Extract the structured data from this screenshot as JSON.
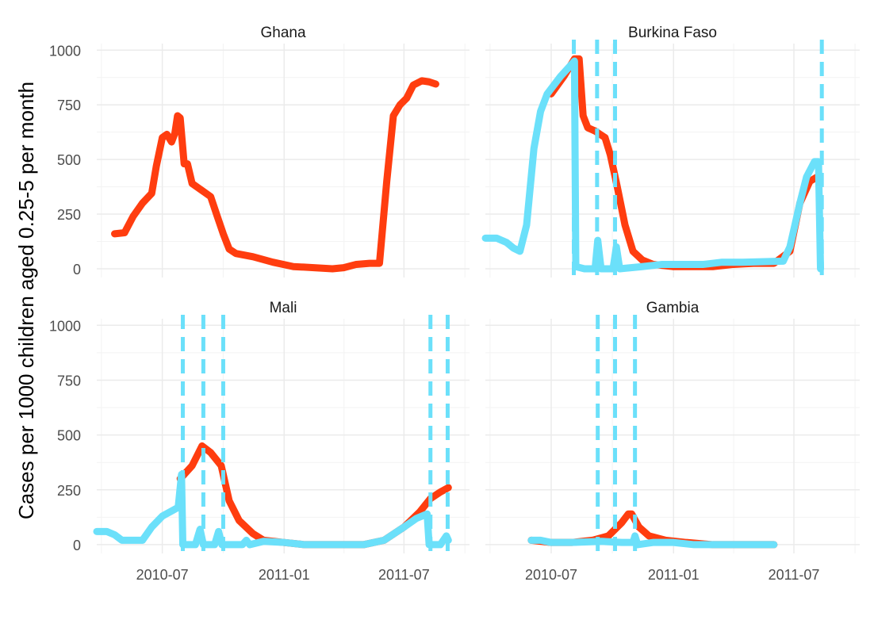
{
  "chart_data": {
    "type": "line",
    "ylabel": "Cases per 1000 children aged 0.25-5 per month",
    "xlabel": "",
    "y_ticks": [
      "0",
      "250",
      "500",
      "750",
      "1000"
    ],
    "y_tick_values": [
      0,
      250,
      500,
      750,
      1000
    ],
    "x_ticks": [
      "2010-07",
      "2011-01",
      "2011-07"
    ],
    "x_tick_values": [
      "2010-07-01",
      "2011-01-01",
      "2011-07-01"
    ],
    "xlim": [
      "2010-03-24",
      "2011-10-08"
    ],
    "ylim": [
      -40,
      1030
    ],
    "grid": true,
    "legend": "none",
    "colors": {
      "red_series": "#FF3D0F",
      "blue_series": "#6BE0FA",
      "grid": "#EBEBEB"
    },
    "panels": [
      {
        "title": "Ghana",
        "red": [
          [
            "2010-04-20",
            160
          ],
          [
            "2010-05-05",
            165
          ],
          [
            "2010-05-18",
            240
          ],
          [
            "2010-06-01",
            300
          ],
          [
            "2010-06-15",
            345
          ],
          [
            "2010-06-22",
            470
          ],
          [
            "2010-07-01",
            600
          ],
          [
            "2010-07-08",
            615
          ],
          [
            "2010-07-15",
            580
          ],
          [
            "2010-07-20",
            620
          ],
          [
            "2010-07-24",
            700
          ],
          [
            "2010-07-28",
            690
          ],
          [
            "2010-08-03",
            480
          ],
          [
            "2010-08-08",
            480
          ],
          [
            "2010-08-15",
            390
          ],
          [
            "2010-08-29",
            360
          ],
          [
            "2010-09-12",
            330
          ],
          [
            "2010-09-22",
            240
          ],
          [
            "2010-10-01",
            160
          ],
          [
            "2010-10-10",
            90
          ],
          [
            "2010-10-20",
            70
          ],
          [
            "2010-11-15",
            55
          ],
          [
            "2010-12-15",
            30
          ],
          [
            "2011-01-15",
            10
          ],
          [
            "2011-02-15",
            5
          ],
          [
            "2011-03-15",
            0
          ],
          [
            "2011-04-01",
            5
          ],
          [
            "2011-04-20",
            20
          ],
          [
            "2011-05-10",
            25
          ],
          [
            "2011-05-25",
            25
          ],
          [
            "2011-06-05",
            400
          ],
          [
            "2011-06-15",
            700
          ],
          [
            "2011-06-25",
            750
          ],
          [
            "2011-07-05",
            780
          ],
          [
            "2011-07-15",
            840
          ],
          [
            "2011-07-28",
            860
          ],
          [
            "2011-08-08",
            855
          ],
          [
            "2011-08-18",
            845
          ]
        ],
        "blue": [],
        "vlines": []
      },
      {
        "title": "Burkina Faso",
        "red": [
          [
            "2010-07-01",
            800
          ],
          [
            "2010-07-20",
            880
          ],
          [
            "2010-08-05",
            960
          ],
          [
            "2010-08-12",
            960
          ],
          [
            "2010-08-18",
            700
          ],
          [
            "2010-08-25",
            645
          ],
          [
            "2010-09-05",
            630
          ],
          [
            "2010-09-20",
            600
          ],
          [
            "2010-09-28",
            520
          ],
          [
            "2010-10-08",
            380
          ],
          [
            "2010-10-20",
            200
          ],
          [
            "2010-11-01",
            80
          ],
          [
            "2010-11-15",
            40
          ],
          [
            "2010-12-01",
            20
          ],
          [
            "2011-01-01",
            10
          ],
          [
            "2011-03-01",
            10
          ],
          [
            "2011-04-01",
            20
          ],
          [
            "2011-05-01",
            25
          ],
          [
            "2011-06-01",
            25
          ],
          [
            "2011-06-25",
            80
          ],
          [
            "2011-07-10",
            300
          ],
          [
            "2011-07-25",
            400
          ],
          [
            "2011-08-05",
            420
          ]
        ],
        "blue": [
          [
            "2010-03-24",
            140
          ],
          [
            "2010-04-10",
            140
          ],
          [
            "2010-04-25",
            120
          ],
          [
            "2010-05-05",
            95
          ],
          [
            "2010-05-15",
            80
          ],
          [
            "2010-05-25",
            200
          ],
          [
            "2010-06-05",
            550
          ],
          [
            "2010-06-15",
            720
          ],
          [
            "2010-06-25",
            800
          ],
          [
            "2010-07-15",
            880
          ],
          [
            "2010-08-05",
            950
          ],
          [
            "2010-08-07",
            10
          ],
          [
            "2010-08-20",
            0
          ],
          [
            "2010-09-05",
            0
          ],
          [
            "2010-09-09",
            130
          ],
          [
            "2010-09-14",
            0
          ],
          [
            "2010-10-02",
            0
          ],
          [
            "2010-10-07",
            100
          ],
          [
            "2010-10-12",
            0
          ],
          [
            "2010-11-15",
            10
          ],
          [
            "2010-12-15",
            20
          ],
          [
            "2011-02-15",
            20
          ],
          [
            "2011-03-15",
            30
          ],
          [
            "2011-04-15",
            30
          ],
          [
            "2011-06-15",
            35
          ],
          [
            "2011-06-25",
            100
          ],
          [
            "2011-07-10",
            300
          ],
          [
            "2011-07-20",
            420
          ],
          [
            "2011-08-01",
            490
          ],
          [
            "2011-08-07",
            490
          ],
          [
            "2011-08-10",
            0
          ]
        ],
        "vlines": [
          "2010-08-04",
          "2010-09-08",
          "2010-10-05",
          "2011-08-12"
        ]
      },
      {
        "title": "Mali",
        "red": [
          [
            "2010-07-28",
            300
          ],
          [
            "2010-08-15",
            360
          ],
          [
            "2010-08-30",
            450
          ],
          [
            "2010-09-12",
            420
          ],
          [
            "2010-09-28",
            360
          ],
          [
            "2010-10-10",
            200
          ],
          [
            "2010-10-25",
            110
          ],
          [
            "2010-11-15",
            50
          ],
          [
            "2010-12-01",
            20
          ],
          [
            "2011-01-01",
            10
          ],
          [
            "2011-02-01",
            0
          ],
          [
            "2011-05-01",
            0
          ],
          [
            "2011-06-01",
            20
          ],
          [
            "2011-07-01",
            80
          ],
          [
            "2011-07-25",
            150
          ],
          [
            "2011-08-10",
            210
          ],
          [
            "2011-08-25",
            240
          ],
          [
            "2011-09-06",
            260
          ]
        ],
        "blue": [
          [
            "2010-03-24",
            60
          ],
          [
            "2010-04-08",
            60
          ],
          [
            "2010-04-20",
            45
          ],
          [
            "2010-05-01",
            20
          ],
          [
            "2010-06-01",
            20
          ],
          [
            "2010-06-15",
            80
          ],
          [
            "2010-07-01",
            130
          ],
          [
            "2010-07-25",
            170
          ],
          [
            "2010-07-30",
            320
          ],
          [
            "2010-08-01",
            0
          ],
          [
            "2010-08-20",
            0
          ],
          [
            "2010-08-27",
            70
          ],
          [
            "2010-09-01",
            0
          ],
          [
            "2010-09-18",
            0
          ],
          [
            "2010-09-24",
            60
          ],
          [
            "2010-09-29",
            0
          ],
          [
            "2010-10-30",
            0
          ],
          [
            "2010-11-05",
            20
          ],
          [
            "2010-11-10",
            0
          ],
          [
            "2010-12-01",
            15
          ],
          [
            "2011-01-01",
            10
          ],
          [
            "2011-02-01",
            0
          ],
          [
            "2011-05-01",
            0
          ],
          [
            "2011-06-01",
            20
          ],
          [
            "2011-07-01",
            80
          ],
          [
            "2011-07-20",
            120
          ],
          [
            "2011-08-05",
            140
          ],
          [
            "2011-08-08",
            0
          ],
          [
            "2011-08-25",
            0
          ],
          [
            "2011-09-03",
            40
          ],
          [
            "2011-09-06",
            20
          ]
        ],
        "vlines": [
          "2010-08-01",
          "2010-09-01",
          "2010-10-01",
          "2011-08-10",
          "2011-09-05"
        ]
      },
      {
        "title": "Gambia",
        "red": [
          [
            "2010-06-01",
            20
          ],
          [
            "2010-07-01",
            10
          ],
          [
            "2010-08-01",
            10
          ],
          [
            "2010-09-01",
            20
          ],
          [
            "2010-09-25",
            40
          ],
          [
            "2010-10-15",
            100
          ],
          [
            "2010-10-25",
            140
          ],
          [
            "2010-10-30",
            140
          ],
          [
            "2010-11-10",
            80
          ],
          [
            "2010-11-25",
            40
          ],
          [
            "2010-12-20",
            20
          ],
          [
            "2011-01-20",
            10
          ],
          [
            "2011-03-01",
            0
          ],
          [
            "2011-06-01",
            0
          ]
        ],
        "blue": [
          [
            "2010-06-01",
            20
          ],
          [
            "2010-06-15",
            20
          ],
          [
            "2010-07-01",
            10
          ],
          [
            "2010-08-01",
            10
          ],
          [
            "2010-09-15",
            15
          ],
          [
            "2010-10-15",
            10
          ],
          [
            "2010-11-01",
            10
          ],
          [
            "2010-11-04",
            40
          ],
          [
            "2010-11-08",
            0
          ],
          [
            "2010-12-01",
            10
          ],
          [
            "2011-01-01",
            10
          ],
          [
            "2011-02-01",
            0
          ],
          [
            "2011-06-01",
            0
          ]
        ],
        "vlines": [
          "2010-09-09",
          "2010-10-05",
          "2010-11-04"
        ]
      }
    ]
  }
}
